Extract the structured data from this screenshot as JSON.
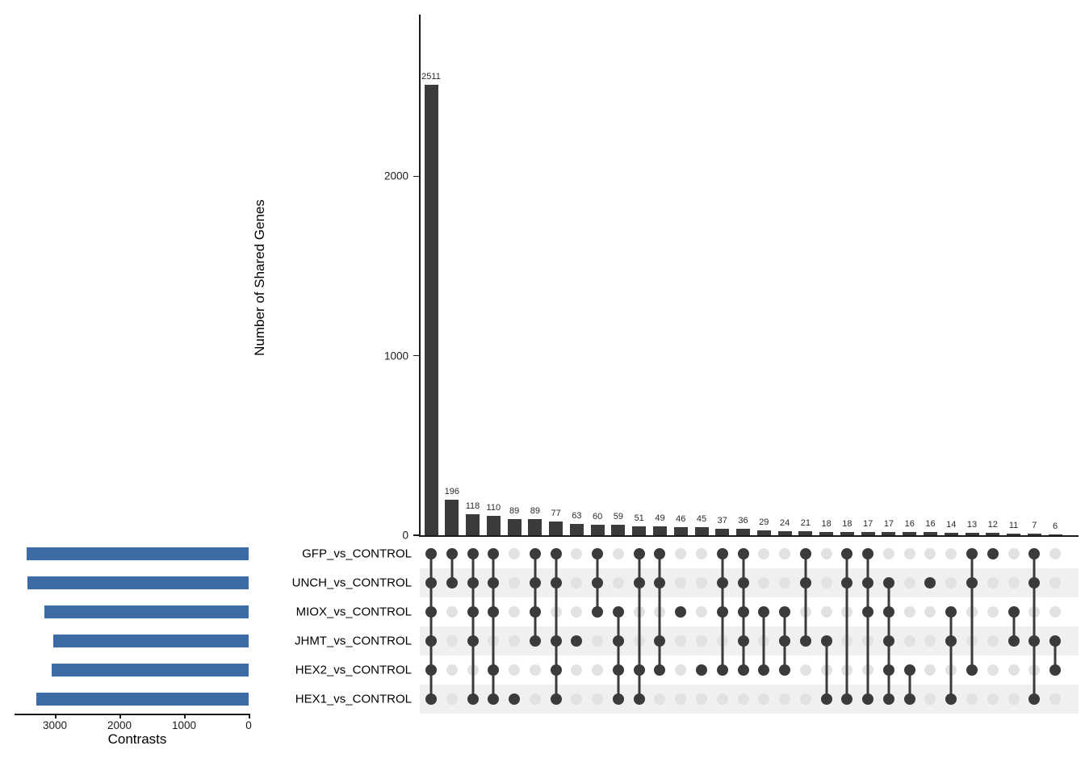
{
  "chart_data": {
    "type": "upset",
    "top_chart": {
      "ylabel": "Number of Shared Genes",
      "y_ticks": [
        0,
        1000,
        2000
      ],
      "ylim": [
        0,
        2800
      ]
    },
    "left_chart": {
      "xlabel": "Contrasts",
      "x_ticks": [
        3000,
        2000,
        1000,
        0
      ],
      "xlim": [
        3650,
        0
      ]
    },
    "sets": [
      {
        "label": "GFP_vs_CONTROL",
        "size": 3440
      },
      {
        "label": "UNCH_vs_CONTROL",
        "size": 3430
      },
      {
        "label": "MIOX_vs_CONTROL",
        "size": 3160
      },
      {
        "label": "JHMT_vs_CONTROL",
        "size": 3020
      },
      {
        "label": "HEX2_vs_CONTROL",
        "size": 3050
      },
      {
        "label": "HEX1_vs_CONTROL",
        "size": 3290
      }
    ],
    "intersections": [
      {
        "value": 2511,
        "members": [
          0,
          1,
          2,
          3,
          4,
          5
        ]
      },
      {
        "value": 196,
        "members": [
          0,
          1
        ]
      },
      {
        "value": 118,
        "members": [
          0,
          1,
          2,
          3,
          5
        ]
      },
      {
        "value": 110,
        "members": [
          0,
          1,
          2,
          4,
          5
        ]
      },
      {
        "value": 89,
        "members": [
          5
        ]
      },
      {
        "value": 89,
        "members": [
          0,
          1,
          2,
          3
        ]
      },
      {
        "value": 77,
        "members": [
          0,
          1,
          3,
          4,
          5
        ]
      },
      {
        "value": 63,
        "members": [
          3
        ]
      },
      {
        "value": 60,
        "members": [
          0,
          1,
          2
        ]
      },
      {
        "value": 59,
        "members": [
          2,
          3,
          4,
          5
        ]
      },
      {
        "value": 51,
        "members": [
          0,
          1,
          4,
          5
        ]
      },
      {
        "value": 49,
        "members": [
          0,
          1,
          3,
          4
        ]
      },
      {
        "value": 46,
        "members": [
          2
        ]
      },
      {
        "value": 45,
        "members": [
          4
        ]
      },
      {
        "value": 37,
        "members": [
          0,
          1,
          2,
          4
        ]
      },
      {
        "value": 36,
        "members": [
          0,
          1,
          2,
          3,
          4
        ]
      },
      {
        "value": 29,
        "members": [
          2,
          4
        ]
      },
      {
        "value": 24,
        "members": [
          2,
          3,
          4
        ]
      },
      {
        "value": 21,
        "members": [
          0,
          1,
          3
        ]
      },
      {
        "value": 18,
        "members": [
          3,
          5
        ]
      },
      {
        "value": 18,
        "members": [
          0,
          1,
          5
        ]
      },
      {
        "value": 17,
        "members": [
          0,
          1,
          2,
          5
        ]
      },
      {
        "value": 17,
        "members": [
          1,
          2,
          3,
          4,
          5
        ]
      },
      {
        "value": 16,
        "members": [
          4,
          5
        ]
      },
      {
        "value": 16,
        "members": [
          1
        ]
      },
      {
        "value": 14,
        "members": [
          2,
          3,
          5
        ]
      },
      {
        "value": 13,
        "members": [
          0,
          1,
          4
        ]
      },
      {
        "value": 12,
        "members": [
          0
        ]
      },
      {
        "value": 11,
        "members": [
          2,
          3
        ]
      },
      {
        "value": 7,
        "members": [
          0,
          1,
          3,
          5
        ]
      },
      {
        "value": 6,
        "members": [
          3,
          4
        ]
      }
    ],
    "colors": {
      "intersection_bar": "#3b3b3b",
      "set_bar": "#3d6ba5",
      "dot_filled": "#3b3b3b",
      "dot_empty": "#e2e2e2",
      "stripe": "#f0f0f0",
      "axis": "#1a1a1a"
    }
  }
}
